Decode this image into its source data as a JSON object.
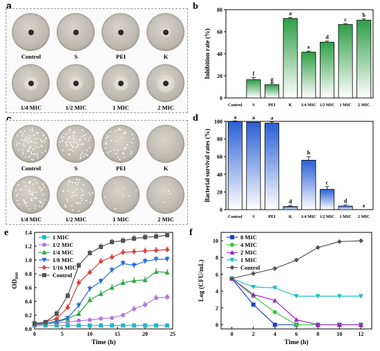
{
  "panels": {
    "a": {
      "letter": "a",
      "dishes_top": [
        "Control",
        "S",
        "PEI",
        "K"
      ],
      "dishes_bottom": [
        "1/4 MIC",
        "1/2 MIC",
        "1 MIC",
        "2 MIC"
      ]
    },
    "c": {
      "letter": "c",
      "dishes_top": [
        "Control",
        "S",
        "PEI",
        "K"
      ],
      "dishes_bottom": [
        "1/4 MIC",
        "1/2 MIC",
        "1 MIC",
        "2 MIC"
      ]
    }
  },
  "chart_data": [
    {
      "panel": "b",
      "type": "bar",
      "ylabel": "Inhibition rate (%)",
      "ylim": [
        0,
        80
      ],
      "yticks": [
        0,
        20,
        40,
        60,
        80
      ],
      "categories": [
        "Control",
        "S",
        "PEI",
        "K",
        "1/4 MIC",
        "1/2 MIC",
        "1 MIC",
        "2 MIC"
      ],
      "values": [
        0,
        16.5,
        12,
        72,
        41.5,
        50.5,
        66.5,
        70.5
      ],
      "errors": [
        0,
        2,
        1.5,
        1,
        1,
        1,
        1,
        1
      ],
      "letters": [
        "",
        "f",
        "g",
        "a",
        "e",
        "d",
        "c",
        "b"
      ],
      "color": "#2e9e45"
    },
    {
      "panel": "d",
      "type": "bar",
      "ylabel": "Bacterial survival rates (%)",
      "ylim": [
        0,
        100
      ],
      "yticks": [
        0,
        20,
        40,
        60,
        80,
        100
      ],
      "categories": [
        "Control",
        "S",
        "PEI",
        "K",
        "1/4 MIC",
        "1/2 MIC",
        "1 MIC",
        "2 MIC"
      ],
      "values": [
        100,
        99,
        98,
        3.5,
        56,
        23,
        4,
        0
      ],
      "errors": [
        0.5,
        1,
        1.5,
        1,
        4,
        3,
        1.5,
        0
      ],
      "letters": [
        "a",
        "a",
        "a",
        "d",
        "b",
        "c",
        "d",
        "e"
      ],
      "color": "#2a5fd6"
    },
    {
      "panel": "e",
      "type": "line",
      "xlabel": "Time (h)",
      "ylabel": "OD600",
      "xlim": [
        0,
        25
      ],
      "ylim": [
        0,
        1.4
      ],
      "xticks": [
        0,
        5,
        10,
        15,
        20,
        25
      ],
      "yticks": [
        0.0,
        0.2,
        0.4,
        0.6,
        0.8,
        1.0,
        1.2,
        1.4
      ],
      "x": [
        0,
        2,
        4,
        6,
        8,
        10,
        12,
        14,
        16,
        18,
        20,
        22,
        24
      ],
      "series": [
        {
          "name": "1 MIC",
          "color": "#22b8c8",
          "marker": "square",
          "values": [
            0.05,
            0.05,
            0.05,
            0.05,
            0.05,
            0.05,
            0.05,
            0.05,
            0.05,
            0.05,
            0.05,
            0.05,
            0.05
          ]
        },
        {
          "name": "1/2 MIC",
          "color": "#b07ad9",
          "marker": "circle",
          "values": [
            0.06,
            0.07,
            0.09,
            0.1,
            0.12,
            0.13,
            0.15,
            0.16,
            0.2,
            0.29,
            0.35,
            0.45,
            0.46
          ]
        },
        {
          "name": "1/4 MIC",
          "color": "#2ca844",
          "marker": "triangle",
          "values": [
            0.07,
            0.08,
            0.1,
            0.15,
            0.22,
            0.42,
            0.51,
            0.6,
            0.67,
            0.7,
            0.71,
            0.83,
            0.82
          ]
        },
        {
          "name": "1/8 MIC",
          "color": "#2a6cd8",
          "marker": "triangle-down",
          "values": [
            0.07,
            0.08,
            0.11,
            0.16,
            0.34,
            0.58,
            0.69,
            0.85,
            0.95,
            0.92,
            0.98,
            1.01,
            1.01
          ]
        },
        {
          "name": "1/16 MIC",
          "color": "#e03c3c",
          "marker": "diamond",
          "values": [
            0.07,
            0.1,
            0.15,
            0.31,
            0.67,
            0.82,
            0.98,
            1.04,
            1.11,
            1.12,
            1.13,
            1.14,
            1.15
          ]
        },
        {
          "name": "Control",
          "color": "#555555",
          "marker": "square",
          "values": [
            0.08,
            0.1,
            0.22,
            0.48,
            0.92,
            1.1,
            1.19,
            1.26,
            1.28,
            1.31,
            1.33,
            1.34,
            1.36
          ]
        }
      ]
    },
    {
      "panel": "f",
      "type": "line",
      "xlabel": "Time (h)",
      "ylabel": "Log (CFU/mL)",
      "xlim": [
        -1,
        13
      ],
      "ylim": [
        -0.5,
        11
      ],
      "xticks": [
        0,
        2,
        4,
        6,
        8,
        10,
        12
      ],
      "yticks": [
        0,
        2,
        4,
        6,
        8,
        10
      ],
      "x": [
        0,
        2,
        4,
        6,
        8,
        10,
        12
      ],
      "series": [
        {
          "name": "8 MIC",
          "color": "#1a3fc4",
          "marker": "square",
          "values": [
            5.5,
            2.4,
            0,
            0,
            0,
            0,
            0
          ]
        },
        {
          "name": "4 MIC",
          "color": "#38c838",
          "marker": "circle",
          "values": [
            5.5,
            3.4,
            1.5,
            0,
            0,
            0,
            0
          ]
        },
        {
          "name": "2 MIC",
          "color": "#a020c8",
          "marker": "triangle",
          "values": [
            5.5,
            3.6,
            2.9,
            0.6,
            0,
            0,
            0
          ]
        },
        {
          "name": "1 MIC",
          "color": "#1fbfbf",
          "marker": "triangle-down",
          "values": [
            5.5,
            4.5,
            4.4,
            3.4,
            3.4,
            3.4,
            3.4
          ]
        },
        {
          "name": "Control",
          "color": "#555555",
          "marker": "diamond",
          "values": [
            5.5,
            6.1,
            6.7,
            7.7,
            9.2,
            9.9,
            10.0
          ]
        }
      ]
    }
  ]
}
